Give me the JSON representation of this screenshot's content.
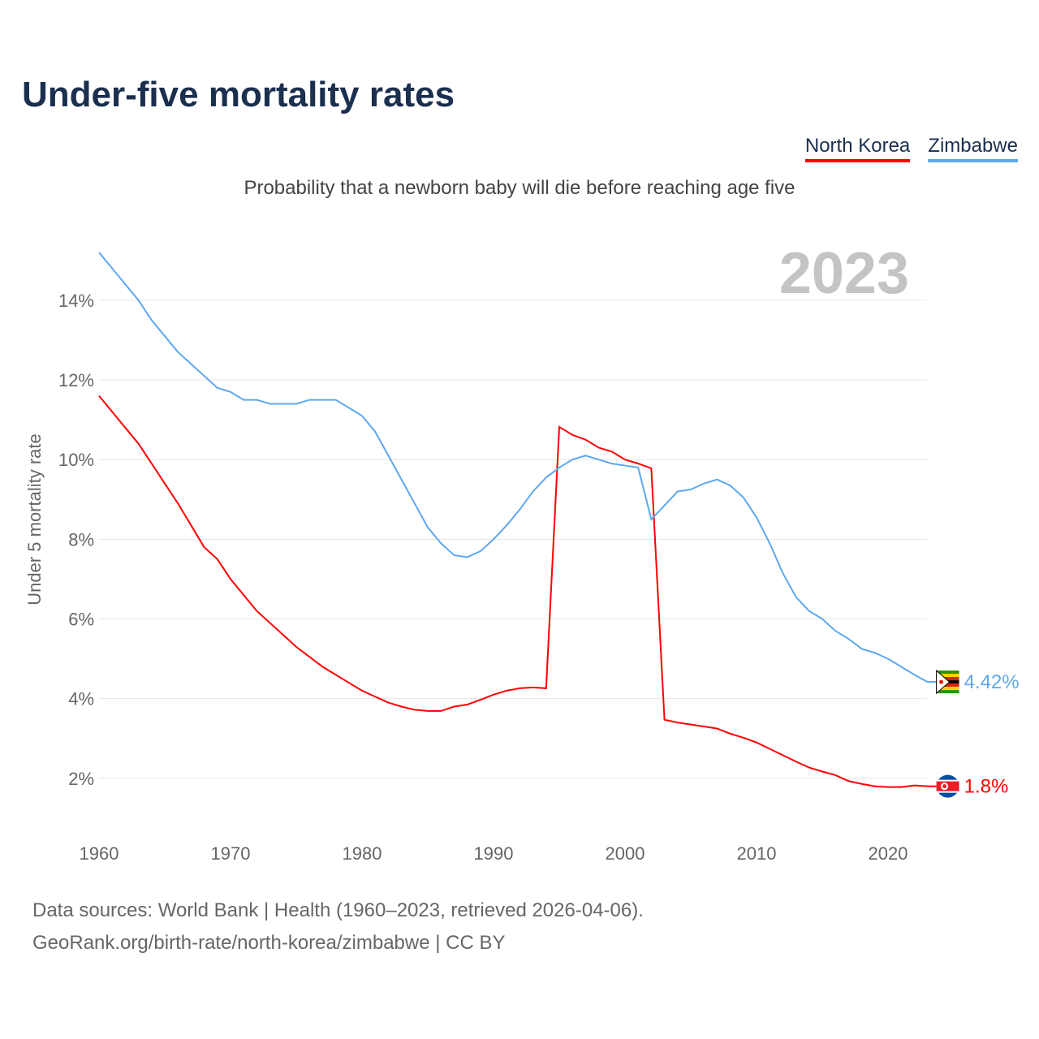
{
  "title": "Under-five mortality rates",
  "subtitle": "Probability that a newborn baby will die before reaching age five",
  "source_line1": "Data sources: World Bank | Health (1960–2023, retrieved 2026-04-06).",
  "source_line2": "GeoRank.org/birth-rate/north-korea/zimbabwe | CC BY",
  "chart_data": {
    "type": "line",
    "title": "Under-five mortality rates",
    "ylabel": "Under 5 mortality rate",
    "xlabel": "",
    "year_label": "2023",
    "xlim": [
      1960,
      2023
    ],
    "ylim": [
      0,
      15.5
    ],
    "xticks": [
      1960,
      1970,
      1980,
      1990,
      2000,
      2010,
      2020
    ],
    "yticks": [
      2,
      4,
      6,
      8,
      10,
      12,
      14
    ],
    "ytick_labels": [
      "2%",
      "4%",
      "6%",
      "8%",
      "10%",
      "12%",
      "14%"
    ],
    "grid": true,
    "legend_position": "top-right",
    "series": [
      {
        "name": "North Korea",
        "color": "#ff0000",
        "end_label": "1.8%",
        "values": [
          11.6,
          11.2,
          10.8,
          10.4,
          9.9,
          9.4,
          8.9,
          8.35,
          7.8,
          7.5,
          7.0,
          6.6,
          6.2,
          5.9,
          5.6,
          5.3,
          5.05,
          4.8,
          4.6,
          4.4,
          4.2,
          4.05,
          3.9,
          3.8,
          3.72,
          3.69,
          3.69,
          3.8,
          3.85,
          3.97,
          4.1,
          4.2,
          4.26,
          4.28,
          4.26,
          10.82,
          10.62,
          10.5,
          10.3,
          10.2,
          10.0,
          9.9,
          9.78,
          3.47,
          3.4,
          3.35,
          3.3,
          3.25,
          3.12,
          3.02,
          2.9,
          2.74,
          2.58,
          2.42,
          2.27,
          2.17,
          2.08,
          1.93,
          1.86,
          1.8,
          1.78,
          1.78,
          1.82,
          1.8
        ]
      },
      {
        "name": "Zimbabwe",
        "color": "#5ea8ee",
        "end_label": "4.42%",
        "values": [
          15.2,
          14.8,
          14.4,
          14.0,
          13.5,
          13.1,
          12.7,
          12.4,
          12.1,
          11.8,
          11.7,
          11.5,
          11.5,
          11.4,
          11.4,
          11.4,
          11.5,
          11.5,
          11.5,
          11.3,
          11.1,
          10.7,
          10.1,
          9.5,
          8.9,
          8.3,
          7.9,
          7.6,
          7.55,
          7.7,
          8.0,
          8.35,
          8.75,
          9.2,
          9.55,
          9.8,
          10.0,
          10.1,
          10.0,
          9.9,
          9.85,
          9.8,
          8.5,
          8.85,
          9.2,
          9.25,
          9.4,
          9.5,
          9.35,
          9.05,
          8.55,
          7.9,
          7.15,
          6.55,
          6.2,
          6.0,
          5.7,
          5.5,
          5.25,
          5.15,
          5.0,
          4.8,
          4.6,
          4.42
        ]
      }
    ]
  }
}
